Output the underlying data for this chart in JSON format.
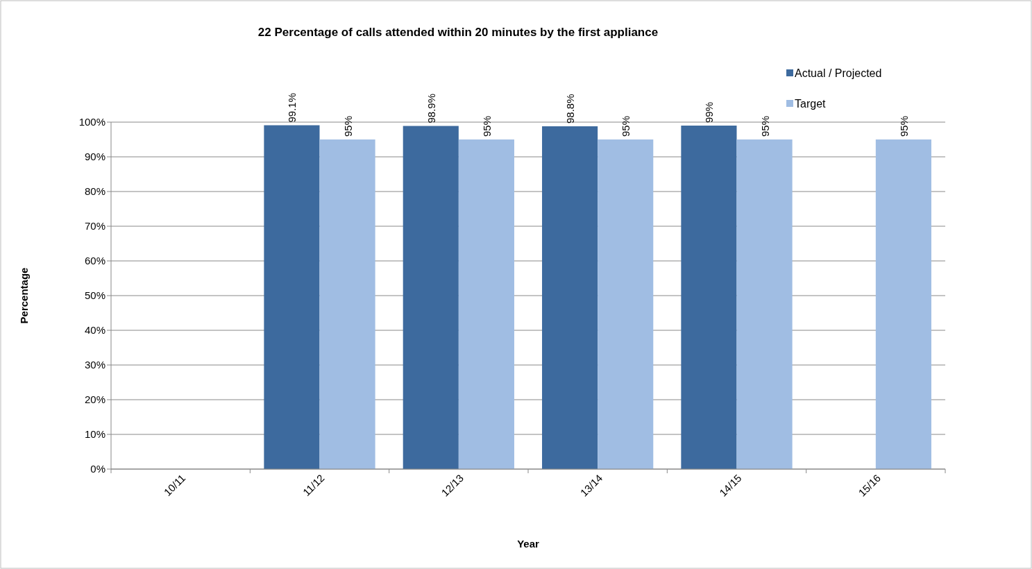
{
  "chart_data": {
    "type": "bar",
    "title": "22 Percentage of calls attended within 20 minutes by the first appliance",
    "xlabel": "Year",
    "ylabel": "Percentage",
    "categories": [
      "10/11",
      "11/12",
      "12/13",
      "13/14",
      "14/15",
      "15/16"
    ],
    "series": [
      {
        "name": "Actual / Projected",
        "color": "#3d6a9e",
        "values": [
          null,
          99.1,
          98.9,
          98.8,
          99,
          null
        ],
        "value_labels": [
          null,
          "99.1%",
          "98.9%",
          "98.8%",
          "99%",
          null
        ]
      },
      {
        "name": "Target",
        "color": "#a0bde3",
        "values": [
          null,
          95,
          95,
          95,
          95,
          95
        ],
        "value_labels": [
          null,
          "95%",
          "95%",
          "95%",
          "95%",
          "95%"
        ]
      }
    ],
    "ylim": [
      0,
      100
    ],
    "yticks": [
      {
        "value": 0,
        "label": "0%"
      },
      {
        "value": 10,
        "label": "10%"
      },
      {
        "value": 20,
        "label": "20%"
      },
      {
        "value": 30,
        "label": "30%"
      },
      {
        "value": 40,
        "label": "40%"
      },
      {
        "value": 50,
        "label": "50%"
      },
      {
        "value": 60,
        "label": "60%"
      },
      {
        "value": 70,
        "label": "70%"
      },
      {
        "value": 80,
        "label": "80%"
      },
      {
        "value": 90,
        "label": "90%"
      },
      {
        "value": 100,
        "label": "100%"
      }
    ],
    "grid": "y",
    "legend": "top right"
  }
}
